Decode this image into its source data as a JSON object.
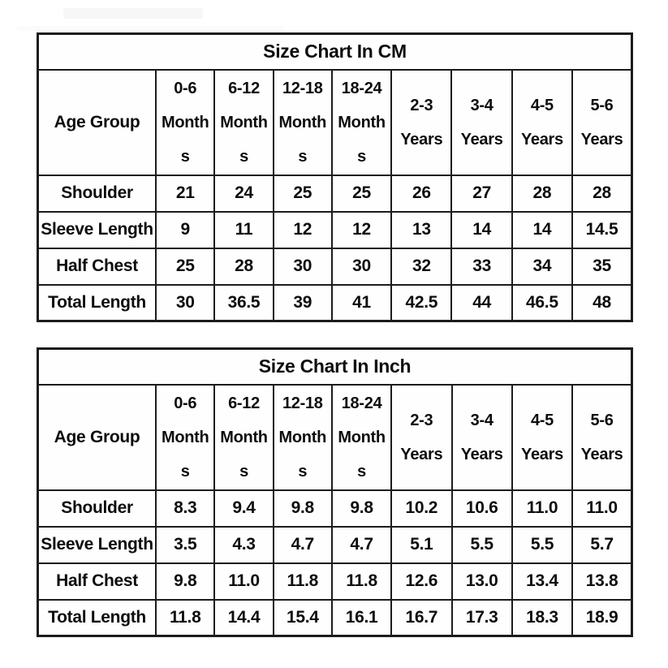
{
  "colors": {
    "border": "#1c1c1c",
    "text": "#0d0d0d",
    "table_bg": "#fefefe",
    "page_bg": "#ffffff"
  },
  "chart_data": [
    {
      "type": "table",
      "title": "Size Chart In CM",
      "corner_label": "Age Group",
      "columns": [
        "0-6 Months",
        "6-12 Months",
        "12-18 Months",
        "18-24 Months",
        "2-3 Years",
        "3-4 Years",
        "4-5 Years",
        "5-6 Years"
      ],
      "rows": [
        {
          "label": "Shoulder",
          "values": [
            "21",
            "24",
            "25",
            "25",
            "26",
            "27",
            "28",
            "28"
          ]
        },
        {
          "label": "Sleeve Length",
          "values": [
            "9",
            "11",
            "12",
            "12",
            "13",
            "14",
            "14",
            "14.5"
          ]
        },
        {
          "label": "Half Chest",
          "values": [
            "25",
            "28",
            "30",
            "30",
            "32",
            "33",
            "34",
            "35"
          ]
        },
        {
          "label": "Total Length",
          "values": [
            "30",
            "36.5",
            "39",
            "41",
            "42.5",
            "44",
            "46.5",
            "48"
          ]
        }
      ]
    },
    {
      "type": "table",
      "title": "Size Chart In Inch",
      "corner_label": "Age Group",
      "columns": [
        "0-6 Months",
        "6-12 Months",
        "12-18 Months",
        "18-24 Months",
        "2-3 Years",
        "3-4 Years",
        "4-5 Years",
        "5-6 Years"
      ],
      "rows": [
        {
          "label": "Shoulder",
          "values": [
            "8.3",
            "9.4",
            "9.8",
            "9.8",
            "10.2",
            "10.6",
            "11.0",
            "11.0"
          ]
        },
        {
          "label": "Sleeve Length",
          "values": [
            "3.5",
            "4.3",
            "4.7",
            "4.7",
            "5.1",
            "5.5",
            "5.5",
            "5.7"
          ]
        },
        {
          "label": "Half Chest",
          "values": [
            "9.8",
            "11.0",
            "11.8",
            "11.8",
            "12.6",
            "13.0",
            "13.4",
            "13.8"
          ]
        },
        {
          "label": "Total Length",
          "values": [
            "11.8",
            "14.4",
            "15.4",
            "16.1",
            "16.7",
            "17.3",
            "18.3",
            "18.9"
          ]
        }
      ]
    }
  ]
}
